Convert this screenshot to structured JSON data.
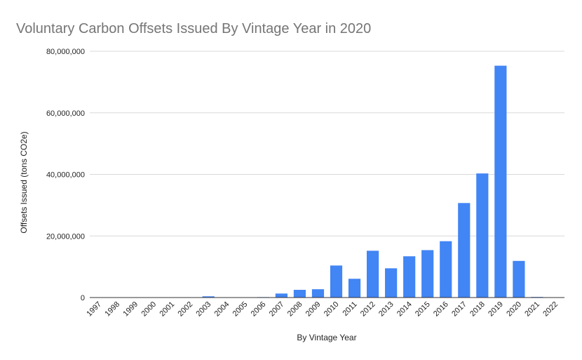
{
  "chart_data": {
    "type": "bar",
    "title": "Voluntary Carbon Offsets Issued By Vintage Year in 2020",
    "xlabel": "By Vintage Year",
    "ylabel": "Offsets Issued (tons CO2e)",
    "ylim": [
      0,
      80000000
    ],
    "yticks": [
      0,
      20000000,
      40000000,
      60000000,
      80000000
    ],
    "ytick_labels": [
      "0",
      "20,000,000",
      "40,000,000",
      "60,000,000",
      "80,000,000"
    ],
    "grid": true,
    "legend": "none",
    "bar_color": "#4285f4",
    "categories": [
      "1997",
      "1998",
      "1999",
      "2000",
      "2001",
      "2002",
      "2003",
      "2004",
      "2005",
      "2006",
      "2007",
      "2008",
      "2009",
      "2010",
      "2011",
      "2012",
      "2013",
      "2014",
      "2015",
      "2016",
      "2017",
      "2018",
      "2019",
      "2020",
      "2021",
      "2022"
    ],
    "values": [
      0,
      0,
      0,
      0,
      0,
      0,
      400000,
      50000,
      0,
      150000,
      1300000,
      2500000,
      2700000,
      10400000,
      6100000,
      15200000,
      9500000,
      13400000,
      15400000,
      18300000,
      30700000,
      40300000,
      75300000,
      11900000,
      200000,
      0
    ]
  }
}
